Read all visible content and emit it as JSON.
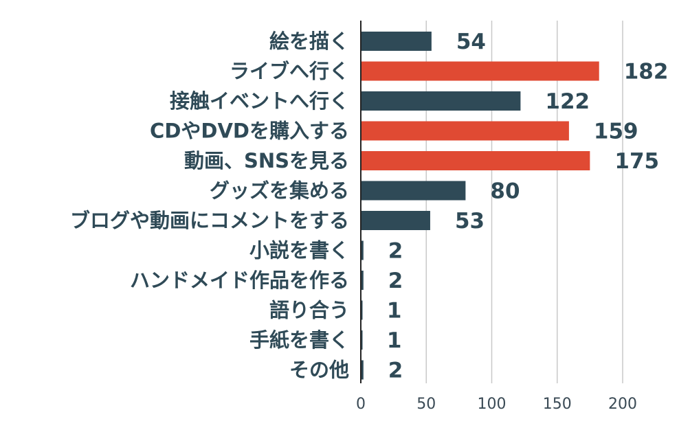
{
  "chart_data": {
    "type": "bar",
    "orientation": "horizontal",
    "categories": [
      "絵を描く",
      "ライブへ行く",
      "接触イベントへ行く",
      "CDやDVDを購入する",
      "動画、SNSを見る",
      "グッズを集める",
      "ブログや動画にコメントをする",
      "小説を書く",
      "ハンドメイド作品を作る",
      "語り合う",
      "手紙を書く",
      "その他"
    ],
    "values": [
      54,
      182,
      122,
      159,
      175,
      80,
      53,
      2,
      2,
      1,
      1,
      2
    ],
    "highlighted": [
      false,
      true,
      false,
      true,
      true,
      false,
      false,
      false,
      false,
      false,
      false,
      false
    ],
    "xlim": [
      0,
      240
    ],
    "xticks": [
      0,
      50,
      100,
      150,
      200
    ],
    "grid": true,
    "title": "",
    "xlabel": "",
    "ylabel": "",
    "colors": {
      "default_bar": "#2f4a57",
      "highlight_bar": "#e04a33",
      "text": "#2f4a57",
      "grid": "#c8c8c8",
      "axis": "#222222"
    }
  }
}
